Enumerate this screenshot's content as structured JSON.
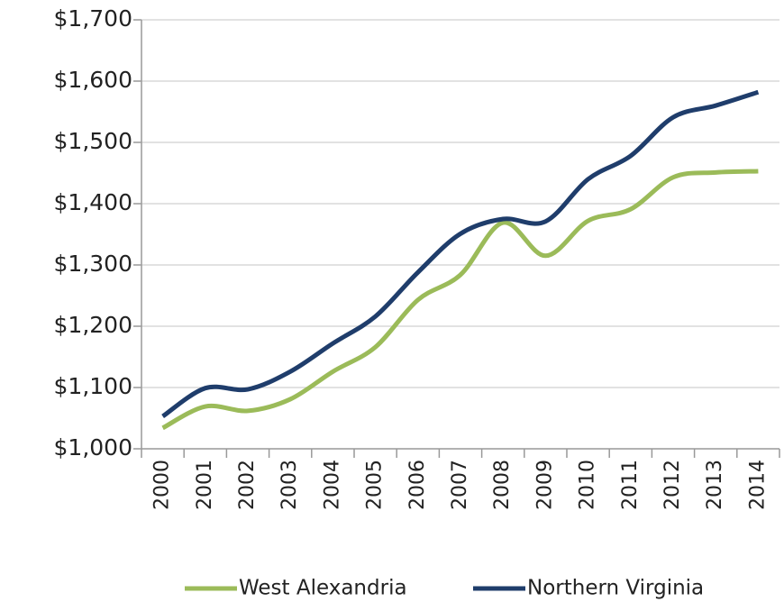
{
  "chart_data": {
    "type": "line",
    "categories": [
      "2000",
      "2001",
      "2002",
      "2003",
      "2004",
      "2005",
      "2006",
      "2007",
      "2008",
      "2009",
      "2010",
      "2011",
      "2012",
      "2013",
      "2014"
    ],
    "series": [
      {
        "name": "West Alexandria",
        "color": "#9bbb59",
        "values": [
          1034,
          1069,
          1062,
          1081,
          1126,
          1166,
          1243,
          1284,
          1369,
          1315,
          1372,
          1391,
          1443,
          1451,
          1453
        ]
      },
      {
        "name": "Northern Virginia",
        "color": "#1f3d6b",
        "values": [
          1053,
          1099,
          1097,
          1126,
          1172,
          1216,
          1288,
          1351,
          1375,
          1371,
          1440,
          1478,
          1541,
          1560,
          1582
        ]
      }
    ],
    "ylim": [
      1000,
      1700
    ],
    "yticks": [
      {
        "value": 1000,
        "label": "$1,000"
      },
      {
        "value": 1100,
        "label": "$1,100"
      },
      {
        "value": 1200,
        "label": "$1,200"
      },
      {
        "value": 1300,
        "label": "$1,300"
      },
      {
        "value": 1400,
        "label": "$1,400"
      },
      {
        "value": 1500,
        "label": "$1,500"
      },
      {
        "value": 1600,
        "label": "$1,600"
      },
      {
        "value": 1700,
        "label": "$1,700"
      }
    ],
    "grid": true,
    "legend": "bottom"
  }
}
